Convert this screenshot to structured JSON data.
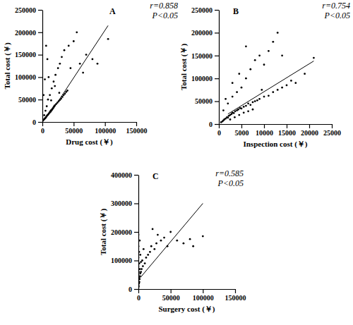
{
  "chart_data": [
    {
      "type": "scatter",
      "title": "A",
      "x_label": "Drug cost (￥)",
      "y_label": "Total cost (￥)",
      "annotations": [
        "r=0.858",
        "P<0.05"
      ],
      "xlim": [
        0,
        150000
      ],
      "xticks": [
        0,
        50000,
        100000,
        150000
      ],
      "ylim": [
        0,
        250000
      ],
      "yticks": [
        0,
        50000,
        100000,
        150000,
        200000,
        250000
      ],
      "color": "#000000",
      "marker": "circle",
      "x": [
        1000,
        2000,
        3000,
        4000,
        5000,
        6000,
        7000,
        8000,
        9000,
        10000,
        11000,
        12000,
        13000,
        14000,
        15000,
        16000,
        17000,
        18000,
        19000,
        20000,
        22000,
        24000,
        26000,
        28000,
        30000,
        32000,
        34000,
        36000,
        38000,
        40000,
        3000,
        5000,
        7000,
        9000,
        12000,
        15000,
        18000,
        21000,
        25000,
        28000,
        31000,
        35000,
        42000,
        45000,
        50000,
        55000,
        60000,
        65000,
        70000,
        80000,
        88000,
        105000,
        2000,
        4000,
        6000,
        8000,
        10000,
        14000,
        20000,
        27000
      ],
      "values": [
        3000,
        5000,
        6000,
        8000,
        9000,
        11000,
        13000,
        15000,
        16000,
        18000,
        20000,
        22000,
        24000,
        26000,
        27000,
        29000,
        31000,
        33000,
        35000,
        37000,
        40000,
        43000,
        46000,
        49000,
        52000,
        56000,
        60000,
        63000,
        67000,
        70000,
        15000,
        25000,
        35000,
        50000,
        60000,
        75000,
        90000,
        105000,
        120000,
        130000,
        145000,
        160000,
        170000,
        120000,
        180000,
        200000,
        130000,
        110000,
        150000,
        140000,
        130000,
        185000,
        60000,
        95000,
        170000,
        140000,
        100000,
        48000,
        80000,
        65000
      ],
      "fit_line": {
        "x": [
          13000,
          105000
        ],
        "y": [
          20000,
          215000
        ]
      }
    },
    {
      "type": "scatter",
      "title": "B",
      "x_label": "Inspection cost (￥)",
      "y_label": "Total cost (￥)",
      "annotations": [
        "r=0.754",
        "P<0.05"
      ],
      "xlim": [
        0,
        25000
      ],
      "xticks": [
        0,
        5000,
        10000,
        15000,
        20000,
        25000
      ],
      "ylim": [
        0,
        250000
      ],
      "yticks": [
        0,
        50000,
        100000,
        150000,
        200000,
        250000
      ],
      "color": "#000000",
      "marker": "circle",
      "x": [
        500,
        800,
        1000,
        1200,
        1500,
        1800,
        2000,
        2200,
        2500,
        2800,
        3000,
        3300,
        3600,
        4000,
        4300,
        4700,
        5000,
        5500,
        6000,
        6500,
        7000,
        7500,
        8000,
        8500,
        9000,
        10000,
        11000,
        12000,
        13000,
        14000,
        15000,
        16000,
        17000,
        19000,
        21000,
        1000,
        2000,
        3000,
        4000,
        5000,
        6000,
        7000,
        8000,
        9000,
        10000,
        11000,
        12000,
        13000,
        14000,
        2500,
        3500,
        4500,
        5500,
        6500,
        7500,
        1500,
        3000,
        4500,
        6000,
        9500
      ],
      "values": [
        4000,
        6000,
        8000,
        10000,
        12000,
        15000,
        14000,
        18000,
        20000,
        22000,
        25000,
        24000,
        28000,
        30000,
        32000,
        35000,
        34000,
        38000,
        40000,
        45000,
        42000,
        48000,
        50000,
        52000,
        55000,
        60000,
        62000,
        70000,
        75000,
        80000,
        85000,
        95000,
        90000,
        110000,
        145000,
        30000,
        45000,
        60000,
        70000,
        80000,
        100000,
        120000,
        140000,
        150000,
        130000,
        160000,
        180000,
        200000,
        150000,
        10000,
        15000,
        20000,
        25000,
        28000,
        32000,
        55000,
        90000,
        110000,
        170000,
        75000
      ],
      "fit_line": {
        "x": [
          2000,
          21000
        ],
        "y": [
          22000,
          138000
        ]
      }
    },
    {
      "type": "scatter",
      "title": "C",
      "x_label": "Surgery cost (￥)",
      "y_label": "Total cost (￥)",
      "annotations": [
        "r=0.585",
        "P<0.05"
      ],
      "xlim": [
        0,
        150000
      ],
      "xticks": [
        0,
        50000,
        100000,
        150000
      ],
      "ylim": [
        0,
        400000
      ],
      "yticks": [
        0,
        100000,
        200000,
        300000,
        400000
      ],
      "color": "#000000",
      "marker": "circle",
      "x": [
        0,
        0,
        0,
        0,
        0,
        0,
        0,
        0,
        500,
        500,
        1000,
        1000,
        1000,
        1500,
        1500,
        2000,
        2000,
        2500,
        3000,
        3000,
        4000,
        5000,
        6000,
        7000,
        8000,
        10000,
        12000,
        15000,
        18000,
        20000,
        22000,
        25000,
        28000,
        30000,
        35000,
        40000,
        45000,
        50000,
        60000,
        70000,
        80000,
        85000,
        100000,
        2000,
        4000
      ],
      "values": [
        5000,
        15000,
        30000,
        50000,
        80000,
        110000,
        150000,
        190000,
        10000,
        60000,
        20000,
        40000,
        130000,
        25000,
        90000,
        35000,
        170000,
        45000,
        55000,
        120000,
        60000,
        70000,
        100000,
        80000,
        140000,
        90000,
        110000,
        120000,
        130000,
        150000,
        210000,
        140000,
        160000,
        190000,
        170000,
        180000,
        150000,
        200000,
        170000,
        160000,
        175000,
        150000,
        185000,
        70000,
        95000
      ],
      "fit_line": {
        "x": [
          3000,
          100000
        ],
        "y": [
          40000,
          300000
        ]
      }
    }
  ]
}
